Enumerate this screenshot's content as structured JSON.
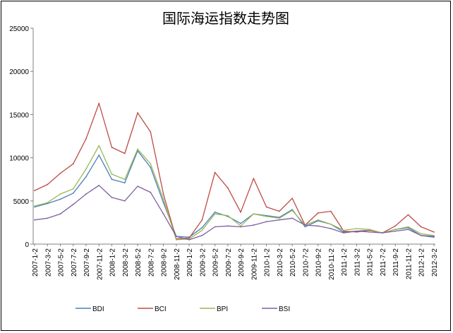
{
  "chart_data": {
    "type": "line",
    "title": "国际海运指数走势图",
    "xlabel": "",
    "ylabel": "",
    "ylim": [
      0,
      25000
    ],
    "yticks": [
      "25000",
      "20000",
      "15000",
      "10000",
      "5000",
      "0"
    ],
    "ytick_values": [
      25000,
      20000,
      15000,
      10000,
      5000,
      0
    ],
    "grid": false,
    "legend_position": "bottom",
    "categories": [
      "2007-1-2",
      "2007-3-2",
      "2007-5-2",
      "2007-7-2",
      "2007-9-2",
      "2007-11-2",
      "2008-1-2",
      "2008-3-2",
      "2008-5-2",
      "2008-7-2",
      "2008-9-2",
      "2008-11-2",
      "2009-1-2",
      "2009-3-2",
      "2009-5-2",
      "2009-7-2",
      "2009-9-2",
      "2009-11-2",
      "2010-1-2",
      "2010-3-2",
      "2010-5-2",
      "2010-7-2",
      "2010-9-2",
      "2010-11-2",
      "2011-1-2",
      "2011-3-2",
      "2011-5-2",
      "2011-7-2",
      "2011-9-2",
      "2011-11-2",
      "2012-1-2",
      "2012-3-2"
    ],
    "series": [
      {
        "name": "BDI",
        "color": "#4a7ebb",
        "values": [
          4300,
          4700,
          5200,
          5900,
          7800,
          10300,
          7500,
          7100,
          10800,
          8900,
          4800,
          900,
          800,
          1900,
          3700,
          3200,
          2400,
          3500,
          3300,
          3100,
          4000,
          2000,
          2700,
          2300,
          1400,
          1500,
          1600,
          1300,
          1700,
          1900,
          1000,
          800
        ]
      },
      {
        "name": "BCI",
        "color": "#be4b48",
        "values": [
          6200,
          6900,
          8200,
          9300,
          12200,
          16300,
          11200,
          10500,
          15200,
          13000,
          5800,
          600,
          700,
          2800,
          8300,
          6500,
          3700,
          7600,
          4300,
          3800,
          5300,
          2200,
          3600,
          3800,
          1500,
          1400,
          1600,
          1300,
          2100,
          3400,
          2000,
          1400
        ]
      },
      {
        "name": "BPI",
        "color": "#98b954",
        "values": [
          4400,
          4800,
          5800,
          6400,
          8700,
          11400,
          8100,
          7500,
          11000,
          9300,
          5200,
          500,
          600,
          1600,
          3500,
          3300,
          2100,
          3500,
          3200,
          3000,
          3900,
          2200,
          2800,
          2300,
          1600,
          1800,
          1700,
          1300,
          1700,
          2000,
          1200,
          1000
        ]
      },
      {
        "name": "BSI",
        "color": "#7d60a0",
        "values": [
          2800,
          3000,
          3500,
          4600,
          5800,
          6800,
          5400,
          5000,
          6700,
          6000,
          3500,
          900,
          500,
          1000,
          2000,
          2100,
          2000,
          2200,
          2600,
          2800,
          3000,
          2200,
          2100,
          1800,
          1300,
          1500,
          1400,
          1300,
          1500,
          1700,
          1000,
          900
        ]
      }
    ]
  }
}
